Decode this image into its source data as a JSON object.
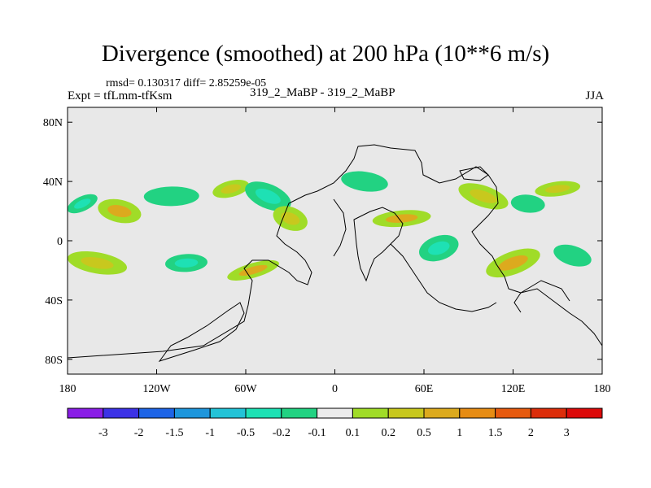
{
  "chart_data": {
    "type": "heatmap",
    "title": "Divergence (smoothed) at 200 hPa (10**6 m/s)",
    "stats": "rmsd= 0.130317 diff= 2.85259e-05",
    "experiment": "Expt = tfLmm-tfKsm",
    "case": "319_2_MaBP - 319_2_MaBP",
    "season": "JJA",
    "x_ticks": [
      "180",
      "120W",
      "60W",
      "0",
      "60E",
      "120E",
      "180"
    ],
    "x_tick_lons": [
      -180,
      -120,
      -60,
      0,
      60,
      120,
      180
    ],
    "y_ticks": [
      "80N",
      "40N",
      "0",
      "40S",
      "80S"
    ],
    "y_tick_lats": [
      80,
      40,
      0,
      -40,
      -80
    ],
    "xlim": [
      -180,
      180
    ],
    "ylim": [
      -90,
      90
    ],
    "colorbar": {
      "labels": [
        "-3",
        "-2",
        "-1.5",
        "-1",
        "-0.5",
        "-0.2",
        "-0.1",
        "0.1",
        "0.2",
        "0.5",
        "1",
        "1.5",
        "2",
        "3"
      ],
      "colors": [
        "#8a1ee6",
        "#3c32e6",
        "#1e64e6",
        "#1e96dc",
        "#23c3d7",
        "#1ee1b4",
        "#22d282",
        "#ebebeb",
        "#a0dc28",
        "#c8c81e",
        "#dcaa1e",
        "#e68c14",
        "#e65a0f",
        "#dc2d0a",
        "#dc0a0a"
      ]
    },
    "background_color": "#e8e8e8",
    "features": [
      {
        "lon": -170,
        "lat": 25,
        "value": -0.3
      },
      {
        "lon": -145,
        "lat": 20,
        "value": 0.5
      },
      {
        "lon": -110,
        "lat": 30,
        "value": -0.2
      },
      {
        "lon": -70,
        "lat": 35,
        "value": 0.3
      },
      {
        "lon": -45,
        "lat": 30,
        "value": -0.3
      },
      {
        "lon": -160,
        "lat": -15,
        "value": 0.3
      },
      {
        "lon": -100,
        "lat": -15,
        "value": -0.5
      },
      {
        "lon": -55,
        "lat": -20,
        "value": 0.5
      },
      {
        "lon": -30,
        "lat": 15,
        "value": 0.3
      },
      {
        "lon": 20,
        "lat": 40,
        "value": -0.2
      },
      {
        "lon": 45,
        "lat": 15,
        "value": 0.5
      },
      {
        "lon": 70,
        "lat": -5,
        "value": -0.3
      },
      {
        "lon": 100,
        "lat": 30,
        "value": 0.3
      },
      {
        "lon": 130,
        "lat": 25,
        "value": -0.2
      },
      {
        "lon": 150,
        "lat": 35,
        "value": 0.3
      },
      {
        "lon": 120,
        "lat": -15,
        "value": 0.5
      },
      {
        "lon": 160,
        "lat": -10,
        "value": -0.2
      }
    ]
  }
}
